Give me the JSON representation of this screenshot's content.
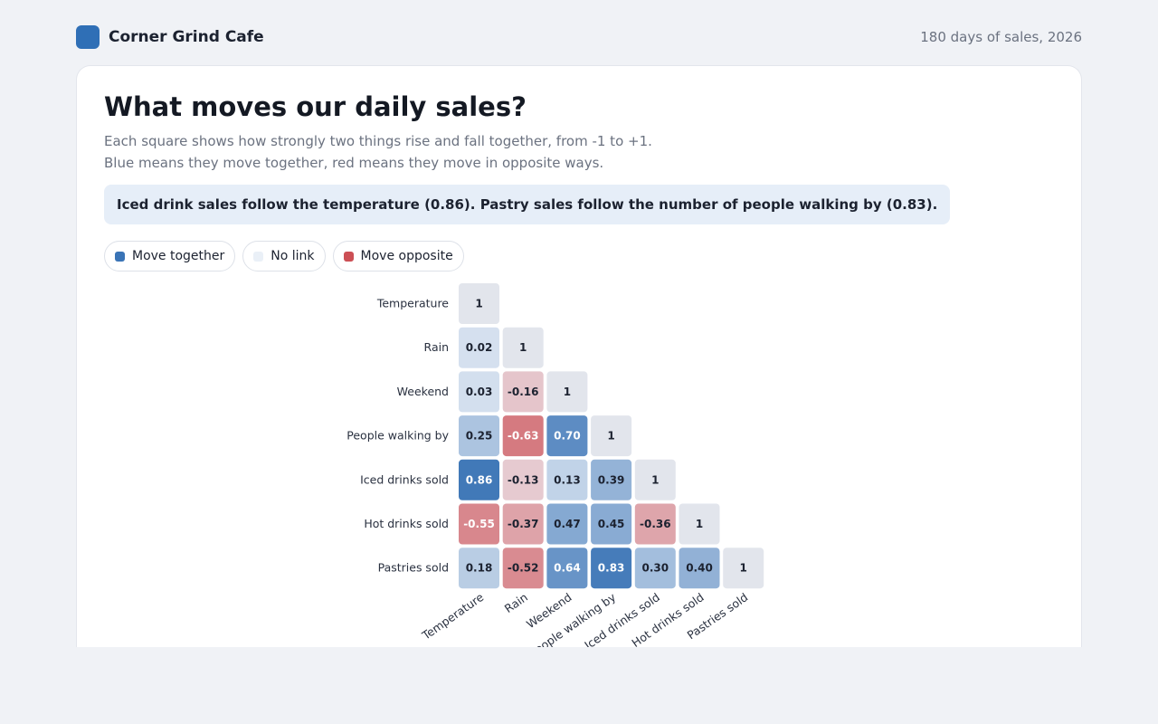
{
  "header": {
    "brand": "Corner Grind Cafe",
    "period": "180 days of sales, 2026"
  },
  "card": {
    "title": "What moves our daily sales?",
    "subtitle_line1": "Each square shows how strongly two things rise and fall together, from -1 to +1.",
    "subtitle_line2": "Blue means they move together, red means they move in opposite ways.",
    "insight": "Iced drink sales follow the temperature (0.86). Pastry sales follow the number of people walking by (0.83)."
  },
  "legend": [
    {
      "label": "Move together",
      "color": "#3a74b6"
    },
    {
      "label": "No link",
      "color": "#eaf0f7"
    },
    {
      "label": "Move opposite",
      "color": "#cc4f55"
    }
  ],
  "colors": {
    "positive": "#3a74b6",
    "negative": "#cc4f55",
    "neutral": "#eef2f8",
    "diagonal": "#e2e5ec"
  },
  "chart_data": {
    "type": "heatmap",
    "variables": [
      "Temperature",
      "Rain",
      "Weekend",
      "People walking by",
      "Iced drinks sold",
      "Hot drinks sold",
      "Pastries sold"
    ],
    "value_range": [
      -1,
      1
    ],
    "lower_triangle": [
      [
        "1"
      ],
      [
        "0.02",
        "1"
      ],
      [
        "0.03",
        "-0.16",
        "1"
      ],
      [
        "0.25",
        "-0.63",
        "0.70",
        "1"
      ],
      [
        "0.86",
        "-0.13",
        "0.13",
        "0.39",
        "1"
      ],
      [
        "-0.55",
        "-0.37",
        "0.47",
        "0.45",
        "-0.36",
        "1"
      ],
      [
        "0.18",
        "-0.52",
        "0.64",
        "0.83",
        "0.30",
        "0.40",
        "1"
      ]
    ]
  }
}
